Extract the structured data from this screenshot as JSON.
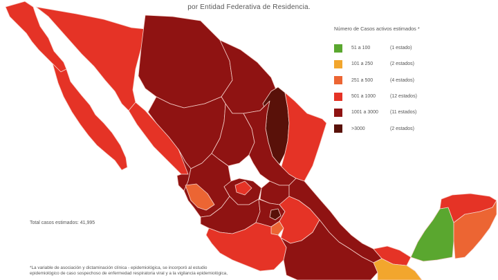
{
  "subtitle": "por Entidad Federativa de Residencia.",
  "legend": {
    "title": "Número de Casos activos estimados *",
    "items": [
      {
        "range": "51 a 100",
        "count": "(1 estado)",
        "color": "#5aa72f"
      },
      {
        "range": "101 a 250",
        "count": "(2 estados)",
        "color": "#f2a62d"
      },
      {
        "range": "251 a 500",
        "count": "(4 estados)",
        "color": "#ec6533"
      },
      {
        "range": "501 a 1000",
        "count": "(12 estados)",
        "color": "#e53326"
      },
      {
        "range": "1001 a 3000",
        "count": "(11 estados)",
        "color": "#8f1312"
      },
      {
        "range": ">3000",
        "count": "(2 estados)",
        "color": "#591109"
      }
    ]
  },
  "total": "Total casos estimados: 41,995",
  "footnote": [
    "*La variable de asociación y dictaminación clínica - epidemiológica, se incorporó al estudio",
    "epidemiológico de caso sospechoso de enfermedad respiratoria viral y a la vigilancia epidemiológica,"
  ],
  "colors": {
    "green": "#5aa72f",
    "yellow": "#f2a62d",
    "orange": "#ec6533",
    "red": "#e53326",
    "darkred": "#8f1312",
    "darkest": "#591109",
    "border": "#f3c9c3"
  }
}
